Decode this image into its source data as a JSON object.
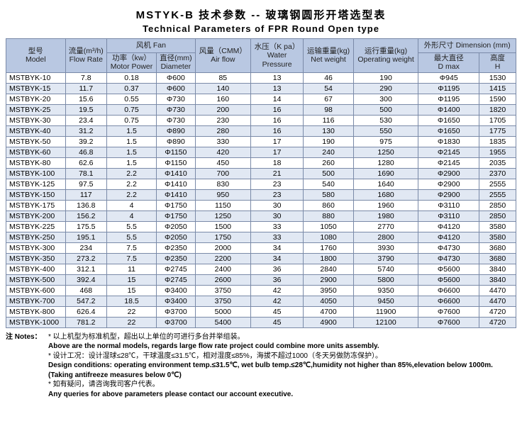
{
  "title_cn": "MSTYK-B  技术参数 -- 玻璃钢圆形开塔选型表",
  "title_en": "Technical Parameters of FPR Round Open type",
  "header": {
    "model_cn": "型号",
    "model_en": "Model",
    "flow_cn": "流量(m³/h)",
    "flow_en": "Flow Rate",
    "fan_cn": "风机",
    "fan_en": "Fan",
    "power_cn": "功率（kw）",
    "power_en": "Motor Power",
    "dia_cn": "直径(mm)",
    "dia_en": "Diameter",
    "airflow_cn": "风量（CMM）",
    "airflow_en": "Air flow",
    "water_cn": "水压（K pa）",
    "water_en": "Water",
    "water_en2": "Pressure",
    "netw_cn": "运输重量(kg)",
    "netw_en": "Net weight",
    "opw_cn": "运行重量(kg)",
    "opw_en": "Operating weight",
    "dim_cn": "外形尺寸",
    "dim_en": "Dimension (mm)",
    "dmax_cn": "最大直径",
    "dmax_en": "D max",
    "h_cn": "高度",
    "h_en": "H"
  },
  "rows": [
    [
      "MSTBYK-10",
      "7.8",
      "0.18",
      "Φ600",
      "85",
      "13",
      "46",
      "190",
      "Φ945",
      "1530"
    ],
    [
      "MSTBYK-15",
      "11.7",
      "0.37",
      "Φ600",
      "140",
      "13",
      "54",
      "290",
      "Φ1195",
      "1415"
    ],
    [
      "MSTBYK-20",
      "15.6",
      "0.55",
      "Φ730",
      "160",
      "14",
      "67",
      "300",
      "Φ1195",
      "1590"
    ],
    [
      "MSTBYK-25",
      "19.5",
      "0.75",
      "Φ730",
      "200",
      "16",
      "98",
      "500",
      "Φ1400",
      "1820"
    ],
    [
      "MSTBYK-30",
      "23.4",
      "0.75",
      "Φ730",
      "230",
      "16",
      "116",
      "530",
      "Φ1650",
      "1705"
    ],
    [
      "MSTBYK-40",
      "31.2",
      "1.5",
      "Φ890",
      "280",
      "16",
      "130",
      "550",
      "Φ1650",
      "1775"
    ],
    [
      "MSTBYK-50",
      "39.2",
      "1.5",
      "Φ890",
      "330",
      "17",
      "190",
      "975",
      "Φ1830",
      "1835"
    ],
    [
      "MSTBYK-60",
      "46.8",
      "1.5",
      "Φ1150",
      "420",
      "17",
      "240",
      "1250",
      "Φ2145",
      "1955"
    ],
    [
      "MSTBYK-80",
      "62.6",
      "1.5",
      "Φ1150",
      "450",
      "18",
      "260",
      "1280",
      "Φ2145",
      "2035"
    ],
    [
      "MSTBYK-100",
      "78.1",
      "2.2",
      "Φ1410",
      "700",
      "21",
      "500",
      "1690",
      "Φ2900",
      "2370"
    ],
    [
      "MSTBYK-125",
      "97.5",
      "2.2",
      "Φ1410",
      "830",
      "23",
      "540",
      "1640",
      "Φ2900",
      "2555"
    ],
    [
      "MSTBYK-150",
      "117",
      "2.2",
      "Φ1410",
      "950",
      "23",
      "580",
      "1680",
      "Φ2900",
      "2555"
    ],
    [
      "MSTBYK-175",
      "136.8",
      "4",
      "Φ1750",
      "1150",
      "30",
      "860",
      "1960",
      "Φ3110",
      "2850"
    ],
    [
      "MSTBYK-200",
      "156.2",
      "4",
      "Φ1750",
      "1250",
      "30",
      "880",
      "1980",
      "Φ3110",
      "2850"
    ],
    [
      "MSTBYK-225",
      "175.5",
      "5.5",
      "Φ2050",
      "1500",
      "33",
      "1050",
      "2770",
      "Φ4120",
      "3580"
    ],
    [
      "MSTBYK-250",
      "195.1",
      "5.5",
      "Φ2050",
      "1750",
      "33",
      "1080",
      "2800",
      "Φ4120",
      "3580"
    ],
    [
      "MSTBYK-300",
      "234",
      "7.5",
      "Φ2350",
      "2000",
      "34",
      "1760",
      "3930",
      "Φ4730",
      "3680"
    ],
    [
      "MSTBYK-350",
      "273.2",
      "7.5",
      "Φ2350",
      "2200",
      "34",
      "1800",
      "3790",
      "Φ4730",
      "3680"
    ],
    [
      "MSTBYK-400",
      "312.1",
      "11",
      "Φ2745",
      "2400",
      "36",
      "2840",
      "5740",
      "Φ5600",
      "3840"
    ],
    [
      "MSTBYK-500",
      "392.4",
      "15",
      "Φ2745",
      "2600",
      "36",
      "2900",
      "5800",
      "Φ5600",
      "3840"
    ],
    [
      "MSTBYK-600",
      "468",
      "15",
      "Φ3400",
      "3750",
      "42",
      "3950",
      "9350",
      "Φ6600",
      "4470"
    ],
    [
      "MSTBYK-700",
      "547.2",
      "18.5",
      "Φ3400",
      "3750",
      "42",
      "4050",
      "9450",
      "Φ6600",
      "4470"
    ],
    [
      "MSTBYK-800",
      "626.4",
      "22",
      "Φ3700",
      "5000",
      "45",
      "4700",
      "11900",
      "Φ7600",
      "4720"
    ],
    [
      "MSTBYK-1000",
      "781.2",
      "22",
      "Φ3700",
      "5400",
      "45",
      "4900",
      "12100",
      "Φ7600",
      "4720"
    ]
  ],
  "notes": {
    "label": "注 Notes：",
    "n1a": "* 以上机型为标准机型，超出以上单位的可进行多台并举组装。",
    "n1b": "Above are the normal models, regards large flow rate project could combine more units assembly.",
    "n2a": "* 设计工况：设计湿球≤28℃，干球温度≤31.5℃，相对湿度≤85%，海拔不超过1000（冬天另做防冻保护）。",
    "n2b": "Design conditions: operating environment temp.≤31.5℃, wet bulb temp.≤28℃,humidity not higher than 85%,elevation below 1000m.",
    "n2c": "(Taking antifreeze measures below 0℃)",
    "n3a": "* 如有疑问，请咨询我司客户代表。",
    "n3b": "Any queries for above parameters please contact our account executive."
  },
  "colors": {
    "header_bg": "#b9c8e2",
    "row_alt_bg": "#e1e8f3",
    "border": "#7a8aa8"
  }
}
